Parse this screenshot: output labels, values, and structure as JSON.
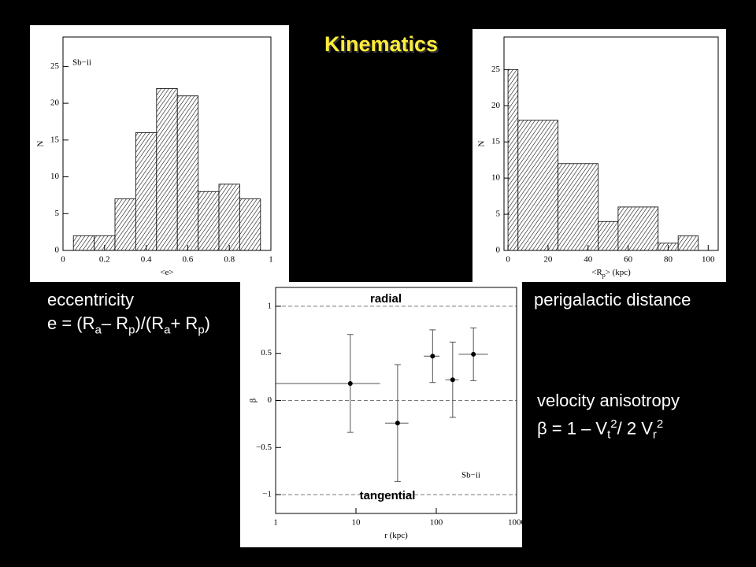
{
  "title": "Kinematics",
  "captions": {
    "eccentricity": "eccentricity",
    "eccentricity_formula": [
      "e = (R",
      "a",
      "– R",
      "p",
      ")/(R",
      "a",
      "+ R",
      "p",
      ")"
    ],
    "perigalactic": "perigalactic distance",
    "anisotropy": "velocity anisotropy",
    "anisotropy_formula": [
      "β = 1 – V",
      "t",
      "2",
      "/ 2 V",
      "r",
      "2"
    ]
  },
  "chart_data": [
    {
      "type": "histogram",
      "annotation": "Sb−ii",
      "xlabel": [
        "<e>"
      ],
      "ylabel": "N",
      "bins": [
        0.05,
        0.15,
        0.25,
        0.35,
        0.45,
        0.55,
        0.65,
        0.75,
        0.85,
        0.95
      ],
      "counts": [
        2,
        2,
        7,
        16,
        22,
        21,
        8,
        9,
        7
      ],
      "xlim": [
        0,
        1
      ],
      "ylim": [
        0,
        29
      ],
      "xticks": [
        0,
        0.2,
        0.4,
        0.6,
        0.8,
        1
      ],
      "yticks": [
        0,
        5,
        10,
        15,
        20,
        25
      ]
    },
    {
      "type": "histogram",
      "xlabel": [
        "<R",
        "p",
        "> (kpc)"
      ],
      "ylabel": "N",
      "bins": [
        0,
        5,
        25,
        45,
        55,
        75,
        85,
        95
      ],
      "counts": [
        25,
        18,
        12,
        4,
        6,
        1,
        2
      ],
      "xlim": [
        -2,
        105
      ],
      "ylim": [
        0,
        29.5
      ],
      "xticks": [
        0,
        20,
        40,
        60,
        80,
        100
      ],
      "yticks": [
        0,
        5,
        10,
        15,
        20,
        25
      ]
    },
    {
      "type": "errorbar",
      "log_x": true,
      "xlabel": [
        "r (kpc)"
      ],
      "ylabel": "β",
      "annotation": "Sb−ii",
      "top_label": "radial",
      "bottom_label": "tangential",
      "hlines": [
        1,
        0,
        -1
      ],
      "x": [
        8.5,
        33,
        90,
        160,
        290
      ],
      "values": [
        0.18,
        -0.24,
        0.47,
        0.22,
        0.49
      ],
      "x_low": [
        1,
        23,
        70,
        130,
        190
      ],
      "x_high": [
        20,
        45,
        110,
        190,
        440
      ],
      "yerr": [
        0.52,
        0.62,
        0.28,
        0.4,
        0.28
      ],
      "xlim": [
        1,
        1000
      ],
      "ylim": [
        -1.2,
        1.2
      ],
      "xticks": [
        1,
        10,
        100,
        1000
      ],
      "yticks": [
        {
          "value": -1,
          "label": "−1"
        },
        {
          "value": -0.5,
          "label": "−0.5"
        },
        0,
        0.5,
        1
      ]
    }
  ]
}
